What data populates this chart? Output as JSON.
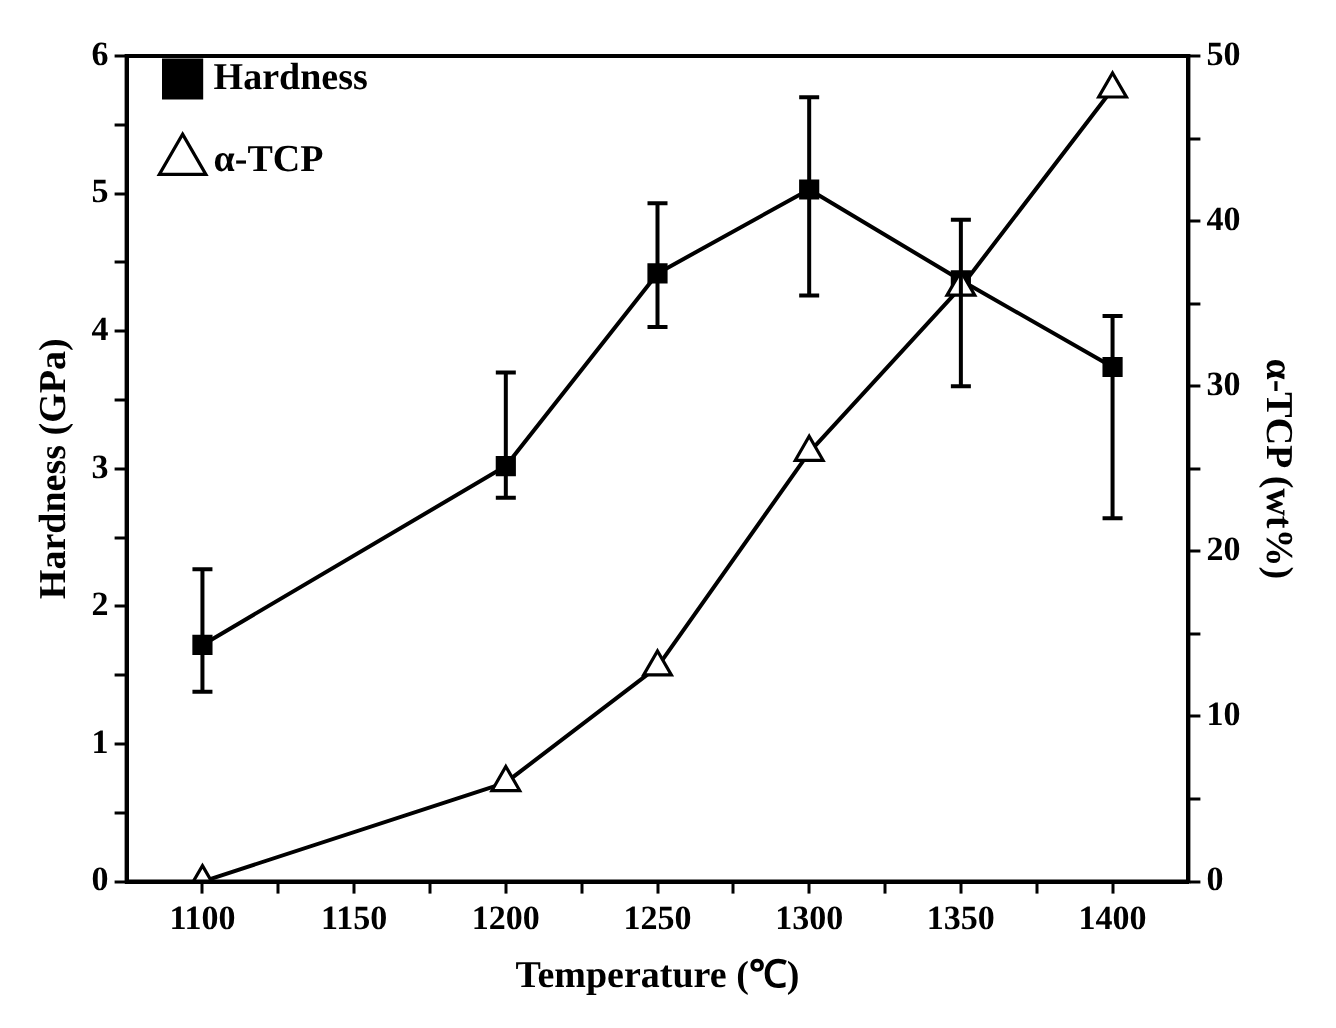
{
  "chart_data": {
    "type": "line",
    "xlabel": "Temperature (℃)",
    "ylabel": "Hardness (GPa)",
    "y2label": "α-TCP (wt%)",
    "x": [
      1100,
      1200,
      1250,
      1300,
      1350,
      1400
    ],
    "series": [
      {
        "name": "Hardness",
        "color": "#000000",
        "marker": "square",
        "values": [
          1.72,
          3.02,
          4.42,
          5.03,
          4.37,
          3.74
        ],
        "errors": [
          [
            1.38,
            2.27
          ],
          [
            2.79,
            3.7
          ],
          [
            4.03,
            4.93
          ],
          [
            4.26,
            5.7
          ],
          [
            3.6,
            4.81
          ],
          [
            2.64,
            4.11
          ]
        ]
      },
      {
        "name": "α-TCP",
        "color": "#000000",
        "marker": "triangle",
        "axis": "y2",
        "values": [
          0,
          6,
          13,
          26,
          36,
          48
        ]
      }
    ],
    "xlim": [
      1075,
      1425
    ],
    "xticks": [
      1100,
      {
        "value": 1125,
        "label": null
      },
      1150,
      {
        "value": 1175,
        "label": null
      },
      1200,
      {
        "value": 1225,
        "label": null
      },
      1250,
      {
        "value": 1275,
        "label": null
      },
      1300,
      {
        "value": 1325,
        "label": null
      },
      1350,
      {
        "value": 1375,
        "label": null
      },
      1400
    ],
    "ylim": [
      0,
      6
    ],
    "yticks": [
      0,
      {
        "value": 0.5,
        "label": null
      },
      1,
      {
        "value": 1.5,
        "label": null
      },
      2,
      {
        "value": 2.5,
        "label": null
      },
      3,
      {
        "value": 3.5,
        "label": null
      },
      4,
      {
        "value": 4.5,
        "label": null
      },
      5,
      {
        "value": 5.5,
        "label": null
      },
      6
    ],
    "y2lim": [
      0,
      50
    ],
    "y2ticks": [
      0,
      {
        "value": 5,
        "label": null
      },
      10,
      {
        "value": 15,
        "label": null
      },
      20,
      {
        "value": 25,
        "label": null
      },
      30,
      {
        "value": 35,
        "label": null
      },
      40,
      {
        "value": 45,
        "label": null
      },
      50
    ],
    "grid": false,
    "legend": "top left",
    "line_style": "solid"
  }
}
